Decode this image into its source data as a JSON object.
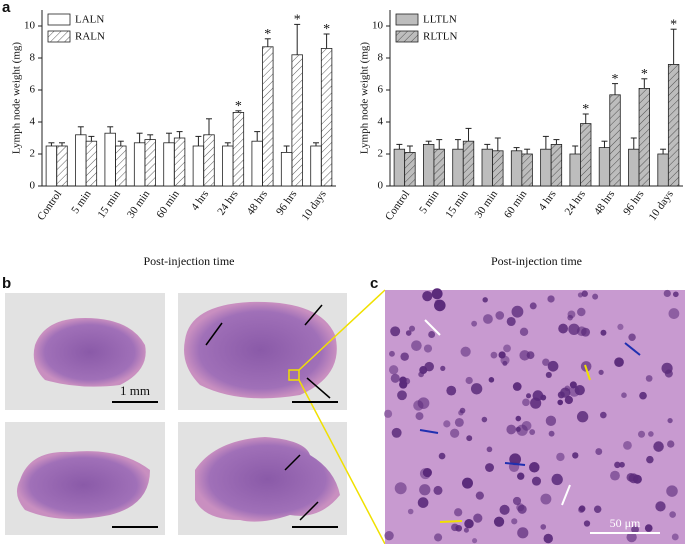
{
  "panel_labels": [
    "a",
    "b",
    "c"
  ],
  "scale_bars": [
    "1 mm",
    "50 μm"
  ],
  "chart_data": [
    {
      "type": "bar",
      "ylabel": "Lymph node weight (mg)",
      "xlabel": "Post-injection time",
      "categories": [
        "Control",
        "5 min",
        "15 min",
        "30 min",
        "60 min",
        "4 hrs",
        "24 hrs",
        "48 hrs",
        "96 hrs",
        "10 days"
      ],
      "series": [
        {
          "name": "LALN",
          "color": "#ffffff",
          "hatch": false,
          "values": [
            2.5,
            3.2,
            3.3,
            2.7,
            2.7,
            2.5,
            2.5,
            2.8,
            2.1,
            2.5
          ],
          "errors": [
            0.2,
            0.5,
            0.4,
            0.6,
            0.6,
            0.6,
            0.2,
            0.6,
            0.4,
            0.2
          ]
        },
        {
          "name": "RALN",
          "color": "#ffffff",
          "hatch": true,
          "values": [
            2.5,
            2.8,
            2.5,
            2.9,
            3.0,
            3.2,
            4.6,
            8.7,
            8.2,
            8.6
          ],
          "errors": [
            0.2,
            0.3,
            0.3,
            0.3,
            0.4,
            1.0,
            0.1,
            0.5,
            1.9,
            0.9
          ]
        }
      ],
      "annotations": [
        {
          "category": "24 hrs",
          "series": "RALN",
          "text": "*"
        },
        {
          "category": "48 hrs",
          "series": "RALN",
          "text": "*"
        },
        {
          "category": "96 hrs",
          "series": "RALN",
          "text": "*"
        },
        {
          "category": "10 days",
          "series": "RALN",
          "text": "*"
        }
      ],
      "ylim": [
        0,
        11
      ],
      "yticks": [
        0,
        2,
        4,
        6,
        8,
        10
      ],
      "legend": "upper left"
    },
    {
      "type": "bar",
      "ylabel": "Lymph node weight (mg)",
      "xlabel": "Post-injection time",
      "categories": [
        "Control",
        "5 min",
        "15 min",
        "30 min",
        "60 min",
        "4 hrs",
        "24 hrs",
        "48 hrs",
        "96 hrs",
        "10 days"
      ],
      "series": [
        {
          "name": "LLTLN",
          "color": "#bdbdbd",
          "hatch": false,
          "values": [
            2.3,
            2.6,
            2.3,
            2.3,
            2.2,
            2.3,
            2.0,
            2.4,
            2.3,
            2.0
          ],
          "errors": [
            0.3,
            0.2,
            0.6,
            0.3,
            0.2,
            0.8,
            0.5,
            0.4,
            0.7,
            0.3
          ]
        },
        {
          "name": "RLTLN",
          "color": "#bdbdbd",
          "hatch": true,
          "values": [
            2.1,
            2.3,
            2.8,
            2.2,
            2.0,
            2.6,
            3.9,
            5.7,
            6.1,
            7.6
          ],
          "errors": [
            0.4,
            0.6,
            0.8,
            0.8,
            0.3,
            0.3,
            0.6,
            0.7,
            0.6,
            2.2
          ]
        }
      ],
      "annotations": [
        {
          "category": "24 hrs",
          "series": "RLTLN",
          "text": "*"
        },
        {
          "category": "48 hrs",
          "series": "RLTLN",
          "text": "*"
        },
        {
          "category": "96 hrs",
          "series": "RLTLN",
          "text": "*"
        },
        {
          "category": "10 days",
          "series": "RLTLN",
          "text": "*"
        }
      ],
      "ylim": [
        0,
        11
      ],
      "yticks": [
        0,
        2,
        4,
        6,
        8,
        10
      ],
      "legend": "upper left"
    }
  ]
}
